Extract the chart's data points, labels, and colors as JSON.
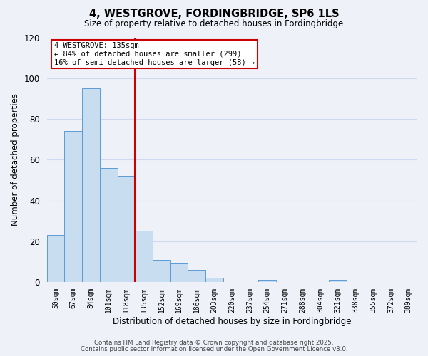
{
  "title": "4, WESTGROVE, FORDINGBRIDGE, SP6 1LS",
  "subtitle": "Size of property relative to detached houses in Fordingbridge",
  "xlabel": "Distribution of detached houses by size in Fordingbridge",
  "ylabel": "Number of detached properties",
  "bin_labels": [
    "50sqm",
    "67sqm",
    "84sqm",
    "101sqm",
    "118sqm",
    "135sqm",
    "152sqm",
    "169sqm",
    "186sqm",
    "203sqm",
    "220sqm",
    "237sqm",
    "254sqm",
    "271sqm",
    "288sqm",
    "304sqm",
    "321sqm",
    "338sqm",
    "355sqm",
    "372sqm",
    "389sqm"
  ],
  "bar_values": [
    23,
    74,
    95,
    56,
    52,
    25,
    11,
    9,
    6,
    2,
    0,
    0,
    1,
    0,
    0,
    0,
    1,
    0,
    0,
    0,
    0
  ],
  "bar_color": "#c9ddf0",
  "bar_edge_color": "#5b9bd5",
  "vline_x": 5,
  "vline_color": "#cc0000",
  "annotation_title": "4 WESTGROVE: 135sqm",
  "annotation_line1": "← 84% of detached houses are smaller (299)",
  "annotation_line2": "16% of semi-detached houses are larger (58) →",
  "annotation_box_color": "white",
  "annotation_box_edge_color": "#cc0000",
  "ylim": [
    0,
    120
  ],
  "yticks": [
    0,
    20,
    40,
    60,
    80,
    100,
    120
  ],
  "background_color": "#eef1f8",
  "grid_color": "#d0d8f0",
  "footer1": "Contains HM Land Registry data © Crown copyright and database right 2025.",
  "footer2": "Contains public sector information licensed under the Open Government Licence v3.0."
}
